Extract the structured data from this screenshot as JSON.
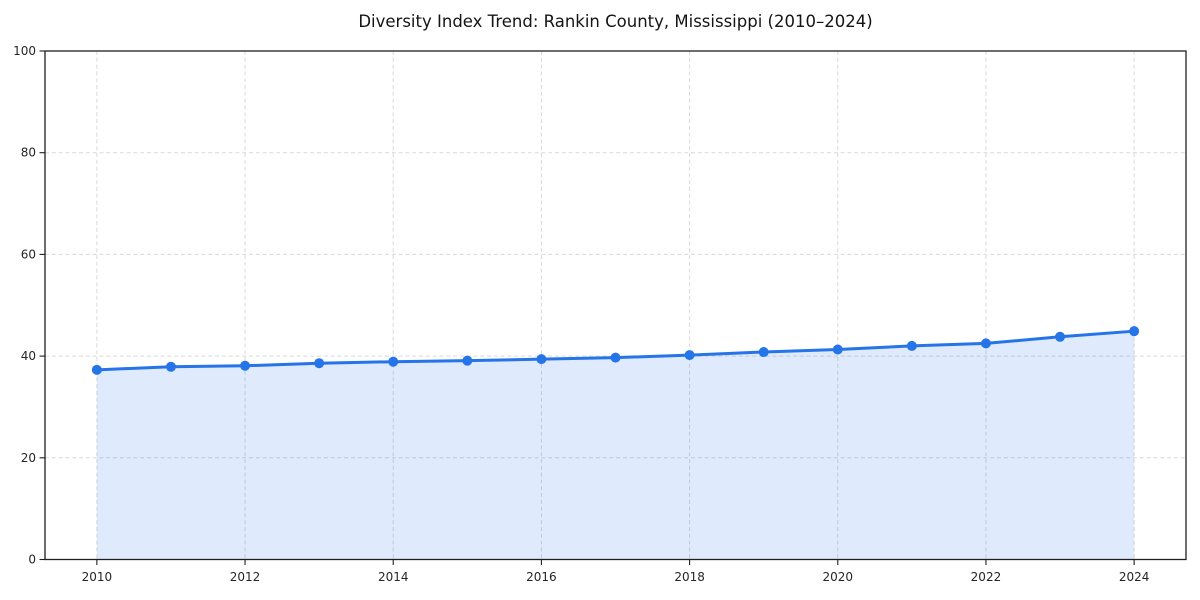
{
  "figure": {
    "title": "Diversity Index Trend: Rankin County, Mississippi (2010–2024)"
  },
  "chart_data": {
    "type": "line",
    "title": "Diversity Index Trend: Rankin County, Mississippi (2010–2024)",
    "x": [
      2010,
      2011,
      2012,
      2013,
      2014,
      2015,
      2016,
      2017,
      2018,
      2019,
      2020,
      2021,
      2022,
      2023,
      2024
    ],
    "values": [
      37.3,
      37.9,
      38.1,
      38.6,
      38.9,
      39.1,
      39.4,
      39.7,
      40.2,
      40.8,
      41.3,
      42.0,
      42.5,
      43.8,
      44.9
    ],
    "xlabel": "",
    "ylabel": "",
    "xlim": [
      2009.3,
      2024.7
    ],
    "ylim": [
      0,
      100
    ],
    "xticks": [
      2010,
      2012,
      2014,
      2016,
      2018,
      2020,
      2022,
      2024
    ],
    "yticks": [
      0,
      20,
      40,
      60,
      80,
      100
    ],
    "grid": "dashed-both-axes",
    "legend": "none",
    "marker": "circle",
    "area_fill": true,
    "colors": {
      "line": "#2574e8",
      "marker": "#2574e8",
      "area": "#2574e8",
      "area_opacity": 0.15,
      "grid": "#d9d9d9",
      "spine": "#1f1f1f",
      "tick_text": "#262626",
      "title_text": "#141414",
      "background": "#ffffff"
    }
  }
}
